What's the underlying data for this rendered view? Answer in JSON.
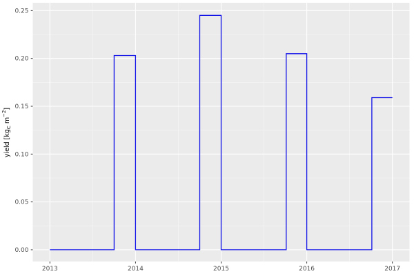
{
  "chart_data": {
    "type": "line",
    "subtype": "step",
    "title": "",
    "xlabel": "",
    "ylabel_plain": "yield [kg_C m^-2]",
    "ylabel_parts": [
      {
        "text": "yield [kg",
        "style": "normal"
      },
      {
        "text": "C",
        "style": "sub"
      },
      {
        "text": " m",
        "style": "normal"
      },
      {
        "text": "−2",
        "style": "sup"
      },
      {
        "text": "]",
        "style": "normal"
      }
    ],
    "x_ticks": [
      2013,
      2014,
      2015,
      2016,
      2017
    ],
    "x_tick_labels": [
      "2013",
      "2014",
      "2015",
      "2016",
      "2017"
    ],
    "x_minor_ticks": [
      2013.5,
      2014.5,
      2015.5,
      2016.5
    ],
    "y_ticks": [
      0.0,
      0.05,
      0.1,
      0.15,
      0.2,
      0.25
    ],
    "y_tick_labels": [
      "0.00",
      "0.05",
      "0.10",
      "0.15",
      "0.20",
      "0.25"
    ],
    "y_minor_ticks": [
      0.025,
      0.075,
      0.125,
      0.175,
      0.225
    ],
    "xlim": [
      2012.8,
      2017.2
    ],
    "ylim": [
      -0.0123,
      0.2582
    ],
    "grid": true,
    "legend": false,
    "points": [
      [
        2013.0,
        0.0
      ],
      [
        2013.75,
        0.0
      ],
      [
        2013.75,
        0.203
      ],
      [
        2014.0,
        0.203
      ],
      [
        2014.0,
        0.0
      ],
      [
        2014.75,
        0.0
      ],
      [
        2014.75,
        0.245
      ],
      [
        2015.0,
        0.245
      ],
      [
        2015.0,
        0.0
      ],
      [
        2015.76,
        0.0
      ],
      [
        2015.76,
        0.205
      ],
      [
        2016.0,
        0.205
      ],
      [
        2016.0,
        0.0
      ],
      [
        2016.76,
        0.0
      ],
      [
        2016.76,
        0.159
      ],
      [
        2017.0,
        0.159
      ]
    ],
    "annual_peak_yields": [
      {
        "year": 2013,
        "value": 0.203
      },
      {
        "year": 2014,
        "value": 0.245
      },
      {
        "year": 2015,
        "value": 0.205
      },
      {
        "year": 2016,
        "value": 0.159
      }
    ],
    "colors": {
      "line": "#0f0fe8",
      "panel_background": "#ebebeb",
      "grid_major": "#ffffff",
      "grid_minor": "#f5f5f5",
      "tick_text": "#4d4d4d",
      "axis_title": "#000000",
      "tick_mark": "#333333",
      "outer_background": "#ffffff"
    }
  }
}
